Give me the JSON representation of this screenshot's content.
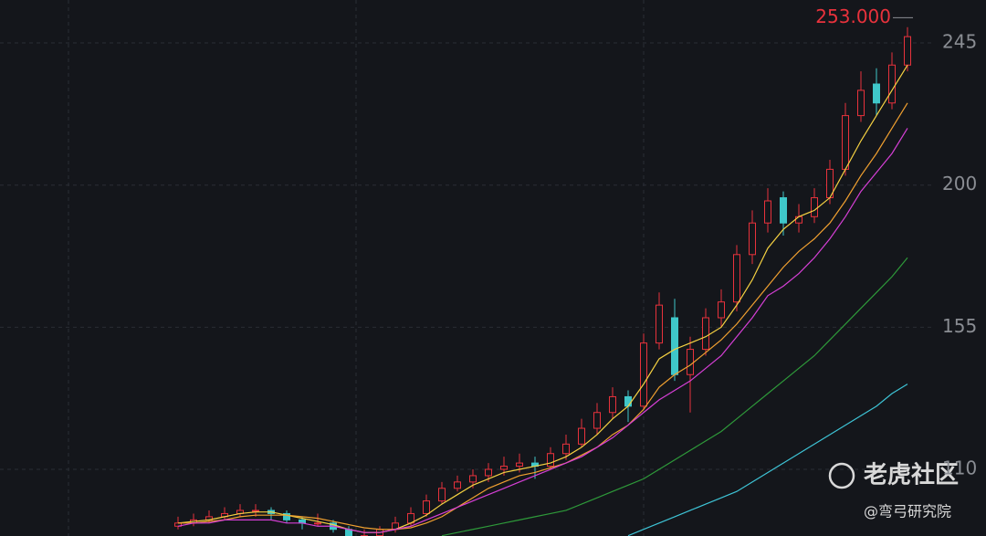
{
  "chart_data": {
    "type": "candlestick",
    "ylim": [
      88.9,
      258.6
    ],
    "yticks": [
      110,
      155,
      200,
      245
    ],
    "grid": true,
    "up_color": "#e8323c",
    "down_color": "#3fc7c9",
    "ohlc": [
      [
        92,
        95,
        91,
        93
      ],
      [
        93,
        96,
        92,
        94
      ],
      [
        94,
        97,
        93,
        95
      ],
      [
        95,
        98,
        94,
        96
      ],
      [
        96,
        99,
        95,
        97
      ],
      [
        97,
        99,
        95,
        97
      ],
      [
        97,
        98,
        94,
        96
      ],
      [
        96,
        97,
        93,
        94
      ],
      [
        94,
        95,
        91,
        93
      ],
      [
        93,
        96,
        92,
        93
      ],
      [
        93,
        94,
        90,
        91
      ],
      [
        91,
        92,
        88,
        89
      ],
      [
        89,
        91,
        88,
        89
      ],
      [
        89,
        92,
        88,
        91
      ],
      [
        91,
        95,
        90,
        93
      ],
      [
        93,
        98,
        92,
        96
      ],
      [
        96,
        102,
        95,
        100
      ],
      [
        100,
        106,
        99,
        104
      ],
      [
        104,
        108,
        103,
        106
      ],
      [
        106,
        110,
        104,
        108
      ],
      [
        108,
        112,
        106,
        110
      ],
      [
        110,
        114,
        108,
        111
      ],
      [
        111,
        115,
        109,
        112
      ],
      [
        112,
        114,
        107,
        111
      ],
      [
        111,
        117,
        110,
        115
      ],
      [
        115,
        121,
        113,
        118
      ],
      [
        118,
        126,
        117,
        123
      ],
      [
        123,
        131,
        121,
        128
      ],
      [
        128,
        136,
        126,
        133
      ],
      [
        133,
        135,
        125,
        130
      ],
      [
        130,
        153,
        129,
        150
      ],
      [
        150,
        166,
        148,
        162
      ],
      [
        158,
        164,
        138,
        140
      ],
      [
        140,
        152,
        128,
        148
      ],
      [
        148,
        161,
        146,
        158
      ],
      [
        158,
        167,
        155,
        163
      ],
      [
        163,
        181,
        160,
        178
      ],
      [
        178,
        192,
        175,
        188
      ],
      [
        188,
        199,
        185,
        195
      ],
      [
        196,
        198,
        184,
        188
      ],
      [
        188,
        194,
        185,
        190
      ],
      [
        190,
        199,
        188,
        196
      ],
      [
        196,
        208,
        194,
        205
      ],
      [
        205,
        226,
        203,
        222
      ],
      [
        222,
        236,
        220,
        230
      ],
      [
        232,
        237,
        222,
        226
      ],
      [
        226,
        242,
        224,
        238
      ],
      [
        238,
        250,
        236,
        247
      ]
    ],
    "series": [
      {
        "color": "#f5d142",
        "values": [
          93,
          93.5,
          94,
          95,
          96,
          96.5,
          96.5,
          95.5,
          94.5,
          93.5,
          92.5,
          91,
          90,
          90,
          91,
          93,
          95.5,
          99,
          102,
          105,
          107,
          109,
          110,
          111,
          112,
          114,
          117,
          121,
          126,
          130,
          137,
          145,
          148,
          150,
          152,
          155,
          162,
          170,
          180,
          186,
          190,
          192,
          196,
          205,
          214,
          222,
          230,
          238
        ]
      },
      {
        "color": "#f0a030",
        "values": [
          93,
          93,
          93.5,
          94,
          95,
          95.5,
          95.5,
          95.5,
          95,
          94.5,
          93.5,
          92.5,
          91.5,
          91,
          91,
          91.5,
          93,
          95,
          98,
          101,
          104,
          106,
          108,
          109,
          110.5,
          112,
          114.5,
          117,
          121,
          124,
          129,
          136,
          140,
          143,
          147,
          151,
          156,
          162,
          168,
          174,
          179,
          183,
          188,
          195,
          203,
          210,
          218,
          226
        ]
      },
      {
        "color": "#d63fd6",
        "values": [
          92,
          93,
          93,
          94,
          94,
          94,
          94,
          93,
          93,
          92,
          92,
          91,
          90,
          90,
          91,
          92,
          94,
          96,
          98,
          100,
          102,
          104,
          106,
          108,
          110,
          112,
          114,
          117,
          120,
          124,
          128,
          132,
          135,
          138,
          142,
          146,
          152,
          158,
          165,
          168,
          172,
          177,
          183,
          190,
          198,
          204,
          210,
          218
        ]
      },
      {
        "color": "#2e9a3a",
        "values": [
          null,
          null,
          null,
          null,
          null,
          null,
          null,
          null,
          null,
          null,
          null,
          null,
          null,
          null,
          null,
          null,
          null,
          89,
          90,
          91,
          92,
          93,
          94,
          95,
          96,
          97,
          99,
          101,
          103,
          105,
          107,
          110,
          113,
          116,
          119,
          122,
          126,
          130,
          134,
          138,
          142,
          146,
          151,
          156,
          161,
          166,
          171,
          177
        ]
      },
      {
        "color": "#3ec4d6",
        "values": [
          null,
          null,
          null,
          null,
          null,
          null,
          null,
          null,
          null,
          null,
          null,
          null,
          null,
          null,
          null,
          null,
          null,
          null,
          null,
          null,
          null,
          null,
          null,
          null,
          null,
          null,
          null,
          null,
          null,
          89,
          91,
          93,
          95,
          97,
          99,
          101,
          103,
          106,
          109,
          112,
          115,
          118,
          121,
          124,
          127,
          130,
          134,
          137
        ]
      }
    ],
    "annotation": {
      "value": 253,
      "label": "253.000"
    },
    "watermark": "老虎社区",
    "author": "@弯弓研究院"
  }
}
